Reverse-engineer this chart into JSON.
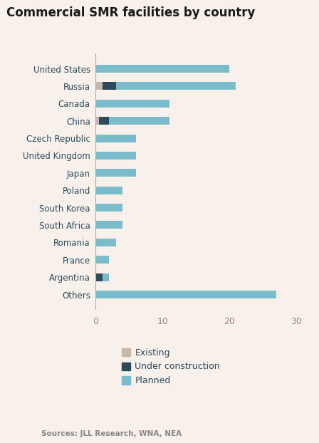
{
  "title": "Commercial SMR facilities by country",
  "categories": [
    "Others",
    "Argentina",
    "France",
    "Romania",
    "South Africa",
    "South Korea",
    "Poland",
    "Japan",
    "United Kingdom",
    "Czech Republic",
    "China",
    "Canada",
    "Russia",
    "United States"
  ],
  "existing": [
    0,
    0,
    0,
    0,
    0,
    0,
    0,
    0,
    0,
    0,
    0.5,
    0,
    1,
    0
  ],
  "under_construction": [
    0,
    1,
    0,
    0,
    0,
    0,
    0,
    0,
    0,
    0,
    1.5,
    0,
    2,
    0
  ],
  "planned": [
    27,
    1,
    2,
    3,
    4,
    4,
    4,
    6,
    6,
    6,
    9,
    11,
    18,
    20
  ],
  "color_existing": "#c9b8a8",
  "color_under_construction": "#2d4a5a",
  "color_planned": "#7bbccc",
  "background_color": "#f7f0eb",
  "title_color": "#1a1a1a",
  "label_color": "#2d4a5a",
  "axis_label_color": "#888888",
  "source_text": "Sources: JLL Research, WNA, NEA",
  "xlim": [
    0,
    32
  ],
  "xticks": [
    0,
    10,
    20,
    30
  ],
  "legend_labels": [
    "Existing",
    "Under construction",
    "Planned"
  ]
}
